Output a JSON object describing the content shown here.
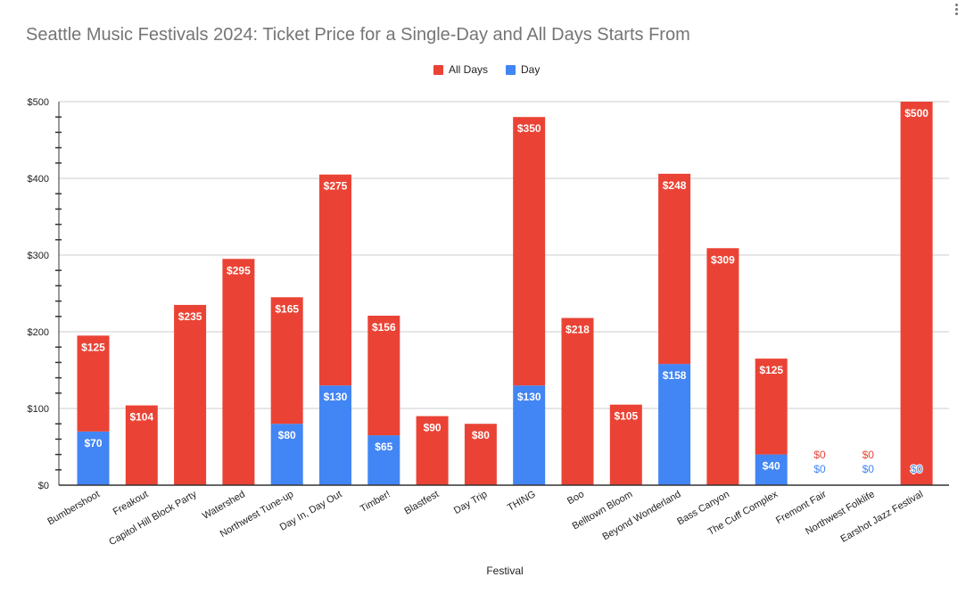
{
  "chart_data": {
    "type": "bar",
    "stacked": true,
    "title": "Seattle Music Festivals 2024: Ticket Price for a Single-Day and All Days Starts From",
    "xlabel": "Festival",
    "ylabel": "",
    "ylim": [
      0,
      500
    ],
    "yticks": [
      "$0",
      "$100",
      "$200",
      "$300",
      "$400",
      "$500"
    ],
    "grid": true,
    "legend_position": "top",
    "categories": [
      "Bumbershoot",
      "Freakout",
      "Capitol Hill Block Party",
      "Watershed",
      "Northwest Tune-up",
      "Day In, Day Out",
      "Timber!",
      "Blastfest",
      "Day Trip",
      "THING",
      "Boo",
      "Belltown Bloom",
      "Beyond Wonderland",
      "Bass Canyon",
      "The Cuff Complex",
      "Fremont Fair",
      "Northwest Folklife",
      "Earshot Jazz Festival"
    ],
    "series": [
      {
        "name": "Day",
        "color": "#4285f4",
        "values": [
          70,
          null,
          null,
          null,
          80,
          130,
          65,
          null,
          null,
          130,
          null,
          null,
          158,
          null,
          40,
          0,
          0,
          0
        ]
      },
      {
        "name": "All Days",
        "color": "#ea4335",
        "values": [
          125,
          104,
          235,
          295,
          165,
          275,
          156,
          90,
          80,
          350,
          218,
          105,
          248,
          309,
          125,
          0,
          0,
          500
        ]
      }
    ],
    "legend": [
      "All Days",
      "Day"
    ]
  },
  "icons": {
    "menu": "more-vert-icon"
  }
}
